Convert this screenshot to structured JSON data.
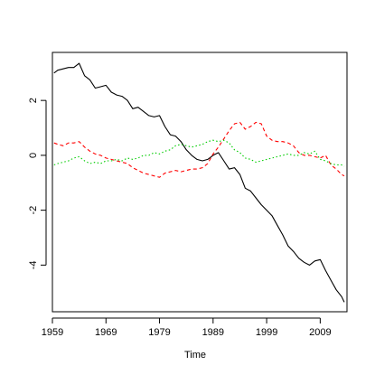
{
  "chart_data": {
    "type": "line",
    "title": "",
    "xlabel": "Time",
    "ylabel": "",
    "xlim": [
      1959,
      2014
    ],
    "ylim": [
      -5.7,
      3.75
    ],
    "x_ticks": [
      1959,
      1969,
      1979,
      1989,
      1999,
      2009
    ],
    "x_tick_labels": [
      "1959",
      "1969",
      "1979",
      "1989",
      "1999",
      "2009"
    ],
    "y_ticks": [
      2,
      0,
      -2,
      -4
    ],
    "y_tick_labels": [
      "2",
      "0",
      "-2",
      "-4"
    ],
    "grid": false,
    "legend": "none",
    "series": [
      {
        "color": "#000000",
        "dash": "solid",
        "x": [
          1959.3,
          1960,
          1961,
          1962,
          1963,
          1964,
          1965,
          1966,
          1967,
          1968,
          1969,
          1970,
          1971,
          1972,
          1973,
          1974,
          1975,
          1976,
          1977,
          1978,
          1979,
          1980,
          1981,
          1982,
          1983,
          1984,
          1985,
          1986,
          1987,
          1988,
          1989,
          1990,
          1991,
          1992,
          1993,
          1994,
          1995,
          1996,
          1997,
          1998,
          1999,
          2000,
          2001,
          2002,
          2003,
          2004,
          2005,
          2006,
          2007,
          2008,
          2009,
          2010,
          2011,
          2012,
          2013,
          2013.5
        ],
        "y": [
          3.0,
          3.1,
          3.15,
          3.2,
          3.2,
          3.35,
          2.9,
          2.75,
          2.45,
          2.5,
          2.55,
          2.3,
          2.2,
          2.15,
          2.0,
          1.7,
          1.75,
          1.6,
          1.45,
          1.4,
          1.45,
          1.05,
          0.75,
          0.7,
          0.5,
          0.2,
          0.0,
          -0.15,
          -0.2,
          -0.15,
          0.0,
          0.1,
          -0.2,
          -0.5,
          -0.45,
          -0.7,
          -1.2,
          -1.3,
          -1.55,
          -1.8,
          -2.0,
          -2.2,
          -2.55,
          -2.9,
          -3.3,
          -3.5,
          -3.75,
          -3.9,
          -4.0,
          -3.85,
          -3.8,
          -4.2,
          -4.55,
          -4.9,
          -5.15,
          -5.35
        ]
      },
      {
        "color": "#ff0000",
        "dash": "dashed",
        "x": [
          1959.3,
          1960,
          1961,
          1962,
          1963,
          1964,
          1965,
          1966,
          1967,
          1968,
          1969,
          1970,
          1971,
          1972,
          1973,
          1974,
          1975,
          1976,
          1977,
          1978,
          1979,
          1980,
          1981,
          1982,
          1983,
          1984,
          1985,
          1986,
          1987,
          1988,
          1989,
          1990,
          1991,
          1992,
          1993,
          1994,
          1995,
          1996,
          1997,
          1998,
          1999,
          2000,
          2001,
          2002,
          2003,
          2004,
          2005,
          2006,
          2007,
          2008,
          2009,
          2010,
          2011,
          2012,
          2013,
          2013.5
        ],
        "y": [
          0.45,
          0.4,
          0.35,
          0.45,
          0.45,
          0.5,
          0.3,
          0.15,
          0.05,
          0.0,
          -0.1,
          -0.15,
          -0.2,
          -0.25,
          -0.3,
          -0.45,
          -0.55,
          -0.65,
          -0.7,
          -0.75,
          -0.8,
          -0.65,
          -0.6,
          -0.55,
          -0.6,
          -0.55,
          -0.5,
          -0.5,
          -0.45,
          -0.3,
          0.05,
          0.3,
          0.6,
          0.9,
          1.15,
          1.2,
          0.95,
          1.05,
          1.2,
          1.15,
          0.7,
          0.55,
          0.5,
          0.5,
          0.45,
          0.35,
          0.1,
          0.0,
          0.0,
          -0.05,
          -0.1,
          0.0,
          -0.35,
          -0.5,
          -0.7,
          -0.75
        ]
      },
      {
        "color": "#00cc00",
        "dash": "dotted",
        "x": [
          1959.3,
          1960,
          1961,
          1962,
          1963,
          1964,
          1965,
          1966,
          1967,
          1968,
          1969,
          1970,
          1971,
          1972,
          1973,
          1974,
          1975,
          1976,
          1977,
          1978,
          1979,
          1980,
          1981,
          1982,
          1983,
          1984,
          1985,
          1986,
          1987,
          1988,
          1989,
          1990,
          1991,
          1992,
          1993,
          1994,
          1995,
          1996,
          1997,
          1998,
          1999,
          2000,
          2001,
          2002,
          2003,
          2004,
          2005,
          2006,
          2007,
          2008,
          2009,
          2010,
          2011,
          2012,
          2013,
          2013.5
        ],
        "y": [
          -0.35,
          -0.3,
          -0.25,
          -0.2,
          -0.1,
          -0.05,
          -0.2,
          -0.3,
          -0.25,
          -0.3,
          -0.2,
          -0.2,
          -0.15,
          -0.2,
          -0.1,
          -0.15,
          -0.1,
          0.0,
          0.0,
          0.1,
          0.05,
          0.15,
          0.2,
          0.35,
          0.4,
          0.35,
          0.3,
          0.35,
          0.4,
          0.5,
          0.55,
          0.5,
          0.55,
          0.45,
          0.2,
          0.1,
          -0.1,
          -0.15,
          -0.25,
          -0.2,
          -0.15,
          -0.1,
          -0.05,
          0.0,
          0.05,
          0.0,
          0.0,
          0.1,
          0.05,
          0.15,
          -0.15,
          -0.2,
          -0.3,
          -0.35,
          -0.35,
          -0.4
        ]
      }
    ]
  }
}
